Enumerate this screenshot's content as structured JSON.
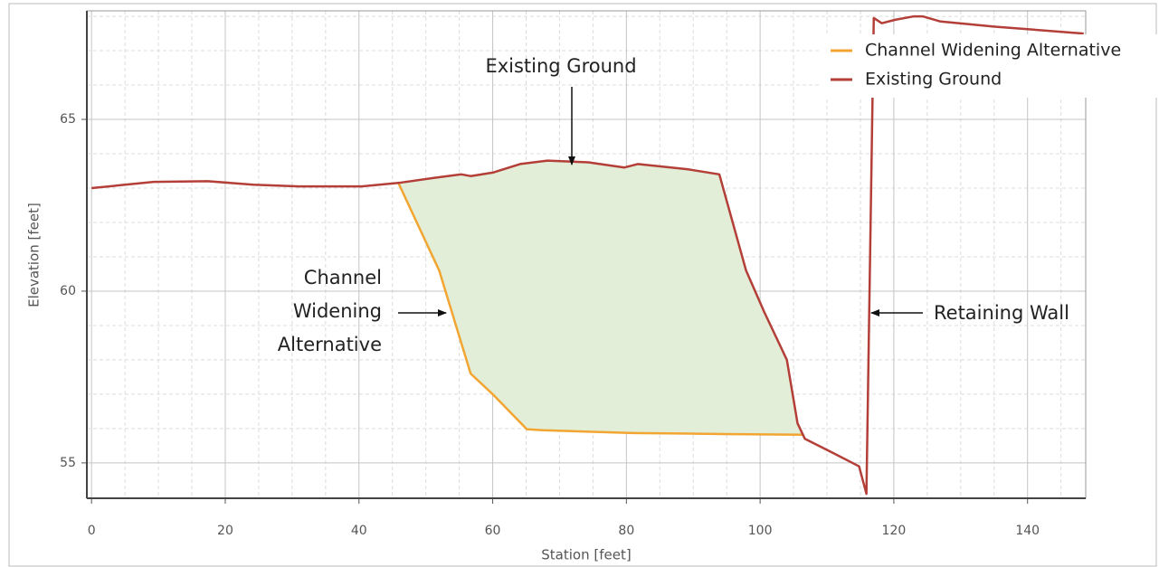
{
  "chart_data": {
    "type": "line",
    "x_label": "Station [feet]",
    "y_label": "Elevation [feet]",
    "xlim": [
      -0.7,
      148.7
    ],
    "ylim": [
      53.97,
      68.16
    ],
    "xticks": [
      0,
      20,
      40,
      60,
      80,
      100,
      120,
      140
    ],
    "yticks": [
      55,
      60,
      65
    ],
    "xminorticks": [
      5,
      10,
      15,
      25,
      30,
      35,
      45,
      50,
      55,
      65,
      70,
      75,
      85,
      90,
      95,
      105,
      110,
      115,
      125,
      130,
      135,
      145
    ],
    "yminorticks": [
      56,
      57,
      58,
      59,
      61,
      62,
      63,
      64,
      66,
      67,
      68
    ],
    "grid": true,
    "legend": "upper right",
    "fill_between_color": "#e2eed8",
    "series": [
      {
        "name": "Channel Widening Alternative",
        "color": "#f2a531",
        "x": [
          45.9,
          52,
          56.7,
          60,
          65.1,
          67.5,
          81,
          94.5,
          106.5
        ],
        "values": [
          63.15,
          60.6,
          57.6,
          57.0,
          55.98,
          55.95,
          55.87,
          55.84,
          55.82
        ]
      },
      {
        "name": "Existing Ground",
        "color": "#b33f38",
        "x": [
          0,
          9.3,
          17.4,
          24.2,
          31,
          40.4,
          45.9,
          51.3,
          55.3,
          56.7,
          60,
          64.1,
          68.2,
          74.3,
          79.7,
          81.7,
          89.1,
          93.9,
          97.9,
          100.6,
          104,
          105.6,
          106.7,
          110.8,
          114.8,
          115.9,
          117,
          118.2,
          120.2,
          123,
          124.3,
          127,
          135.1,
          148.4
        ],
        "values": [
          63.0,
          63.18,
          63.2,
          63.1,
          63.05,
          63.05,
          63.15,
          63.3,
          63.4,
          63.35,
          63.45,
          63.7,
          63.8,
          63.75,
          63.6,
          63.7,
          63.55,
          63.4,
          60.6,
          59.4,
          58.0,
          56.15,
          55.7,
          55.3,
          54.9,
          54.1,
          67.95,
          67.8,
          67.9,
          68.0,
          68.0,
          67.85,
          67.7,
          67.5
        ]
      }
    ],
    "annotations": [
      {
        "text": "Existing Ground"
      },
      {
        "lines": [
          "Channel",
          "Widening",
          "Alternative"
        ]
      },
      {
        "text": "Retaining Wall"
      }
    ]
  }
}
